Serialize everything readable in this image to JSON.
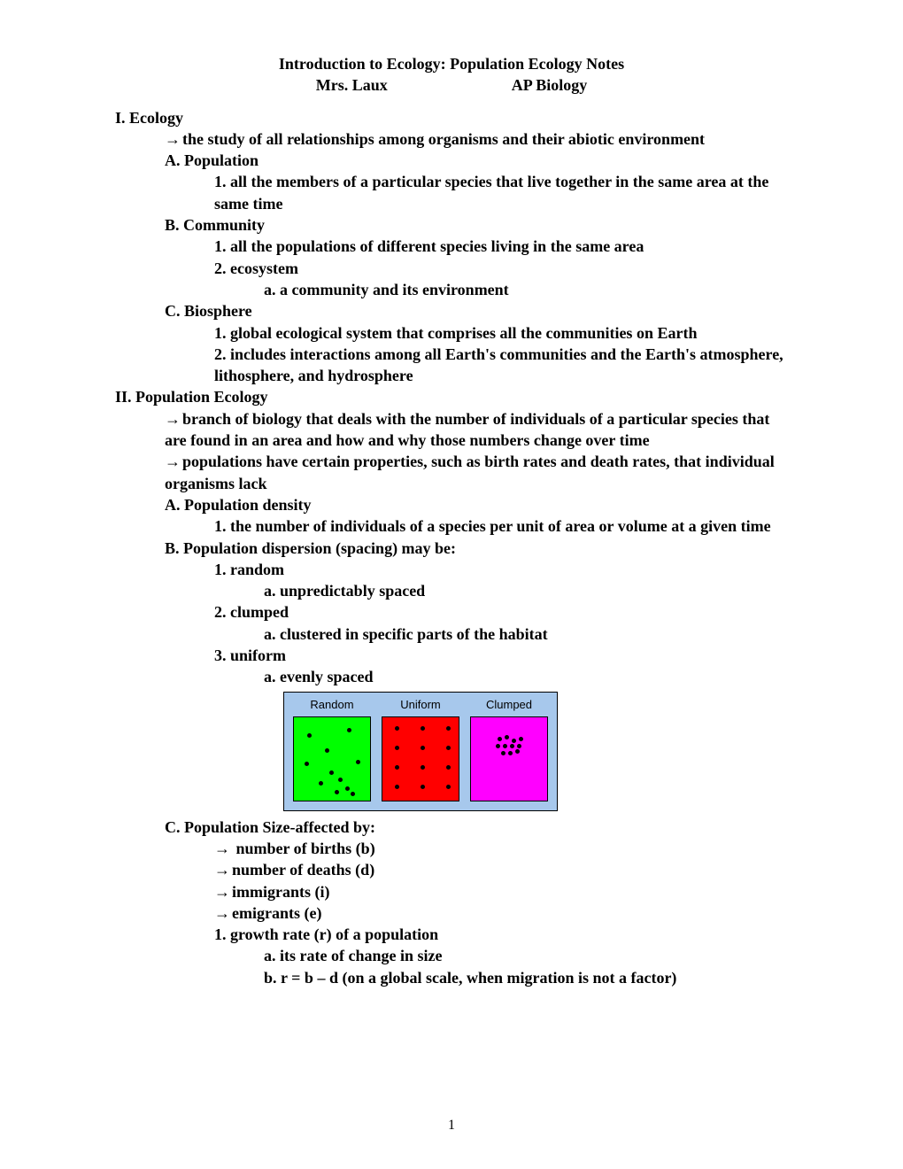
{
  "header": {
    "title": "Introduction to Ecology: Population Ecology Notes",
    "teacher": "Mrs. Laux",
    "course": "AP Biology"
  },
  "sections": {
    "I": {
      "heading": "I. Ecology",
      "def": "the study of all relationships among organisms and their abiotic environment",
      "A": {
        "heading": "A. Population",
        "i1": "1. all the members of a particular species that live together in the same area at the same time"
      },
      "B": {
        "heading": "B. Community",
        "i1": "1. all the populations of different species living in the same area",
        "i2": "2. ecosystem",
        "i2a": "a. a community and its environment"
      },
      "C": {
        "heading": "C. Biosphere",
        "i1": "1. global ecological system that comprises all the communities on Earth",
        "i2": "2. includes interactions among all Earth's communities and the Earth's atmosphere, lithosphere, and hydrosphere"
      }
    },
    "II": {
      "heading": "II. Population Ecology",
      "def1": "branch of biology that deals with the number of individuals of a particular species that are found in an area and how and why those numbers change over time",
      "def2": "populations have certain properties, such as birth rates and death rates, that individual organisms lack",
      "A": {
        "heading": "A. Population density",
        "i1": "1. the number of individuals of a species per unit of area or volume at a given time"
      },
      "B": {
        "heading": "B. Population dispersion (spacing) may be:",
        "i1": "1. random",
        "i1a": "a. unpredictably spaced",
        "i2": "2. clumped",
        "i2a": "a. clustered in specific parts of the habitat",
        "i3": "3. uniform",
        "i3a": "a. evenly spaced"
      },
      "C": {
        "heading": "C. Population Size-affected by:",
        "a1": " number of births (b)",
        "a2": "number of deaths (d)",
        "a3": "immigrants (i)",
        "a4": "emigrants (e)",
        "i1": "1. growth rate (r) of a population",
        "i1a": "a. its rate of change in size",
        "i1b": "b. r = b – d (on a global scale, when migration is not a factor)"
      }
    }
  },
  "diagram": {
    "background_color": "#a7c8ec",
    "panels": [
      {
        "label": "Random",
        "color": "#00ff00",
        "dots": [
          [
            15,
            18
          ],
          [
            60,
            12
          ],
          [
            35,
            35
          ],
          [
            12,
            50
          ],
          [
            70,
            48
          ],
          [
            28,
            72
          ],
          [
            50,
            68
          ],
          [
            58,
            78
          ],
          [
            46,
            82
          ],
          [
            64,
            84
          ],
          [
            40,
            60
          ]
        ]
      },
      {
        "label": "Uniform",
        "color": "#ff0000",
        "dots": [
          [
            14,
            10
          ],
          [
            43,
            10
          ],
          [
            72,
            10
          ],
          [
            14,
            32
          ],
          [
            43,
            32
          ],
          [
            72,
            32
          ],
          [
            14,
            54
          ],
          [
            43,
            54
          ],
          [
            72,
            54
          ],
          [
            14,
            76
          ],
          [
            43,
            76
          ],
          [
            72,
            76
          ]
        ]
      },
      {
        "label": "Clumped",
        "color": "#ff00ff",
        "dots": [
          [
            30,
            22
          ],
          [
            38,
            20
          ],
          [
            46,
            24
          ],
          [
            54,
            22
          ],
          [
            28,
            30
          ],
          [
            36,
            30
          ],
          [
            44,
            30
          ],
          [
            52,
            30
          ],
          [
            34,
            38
          ],
          [
            42,
            38
          ],
          [
            50,
            36
          ]
        ]
      }
    ]
  },
  "page_number": "1"
}
